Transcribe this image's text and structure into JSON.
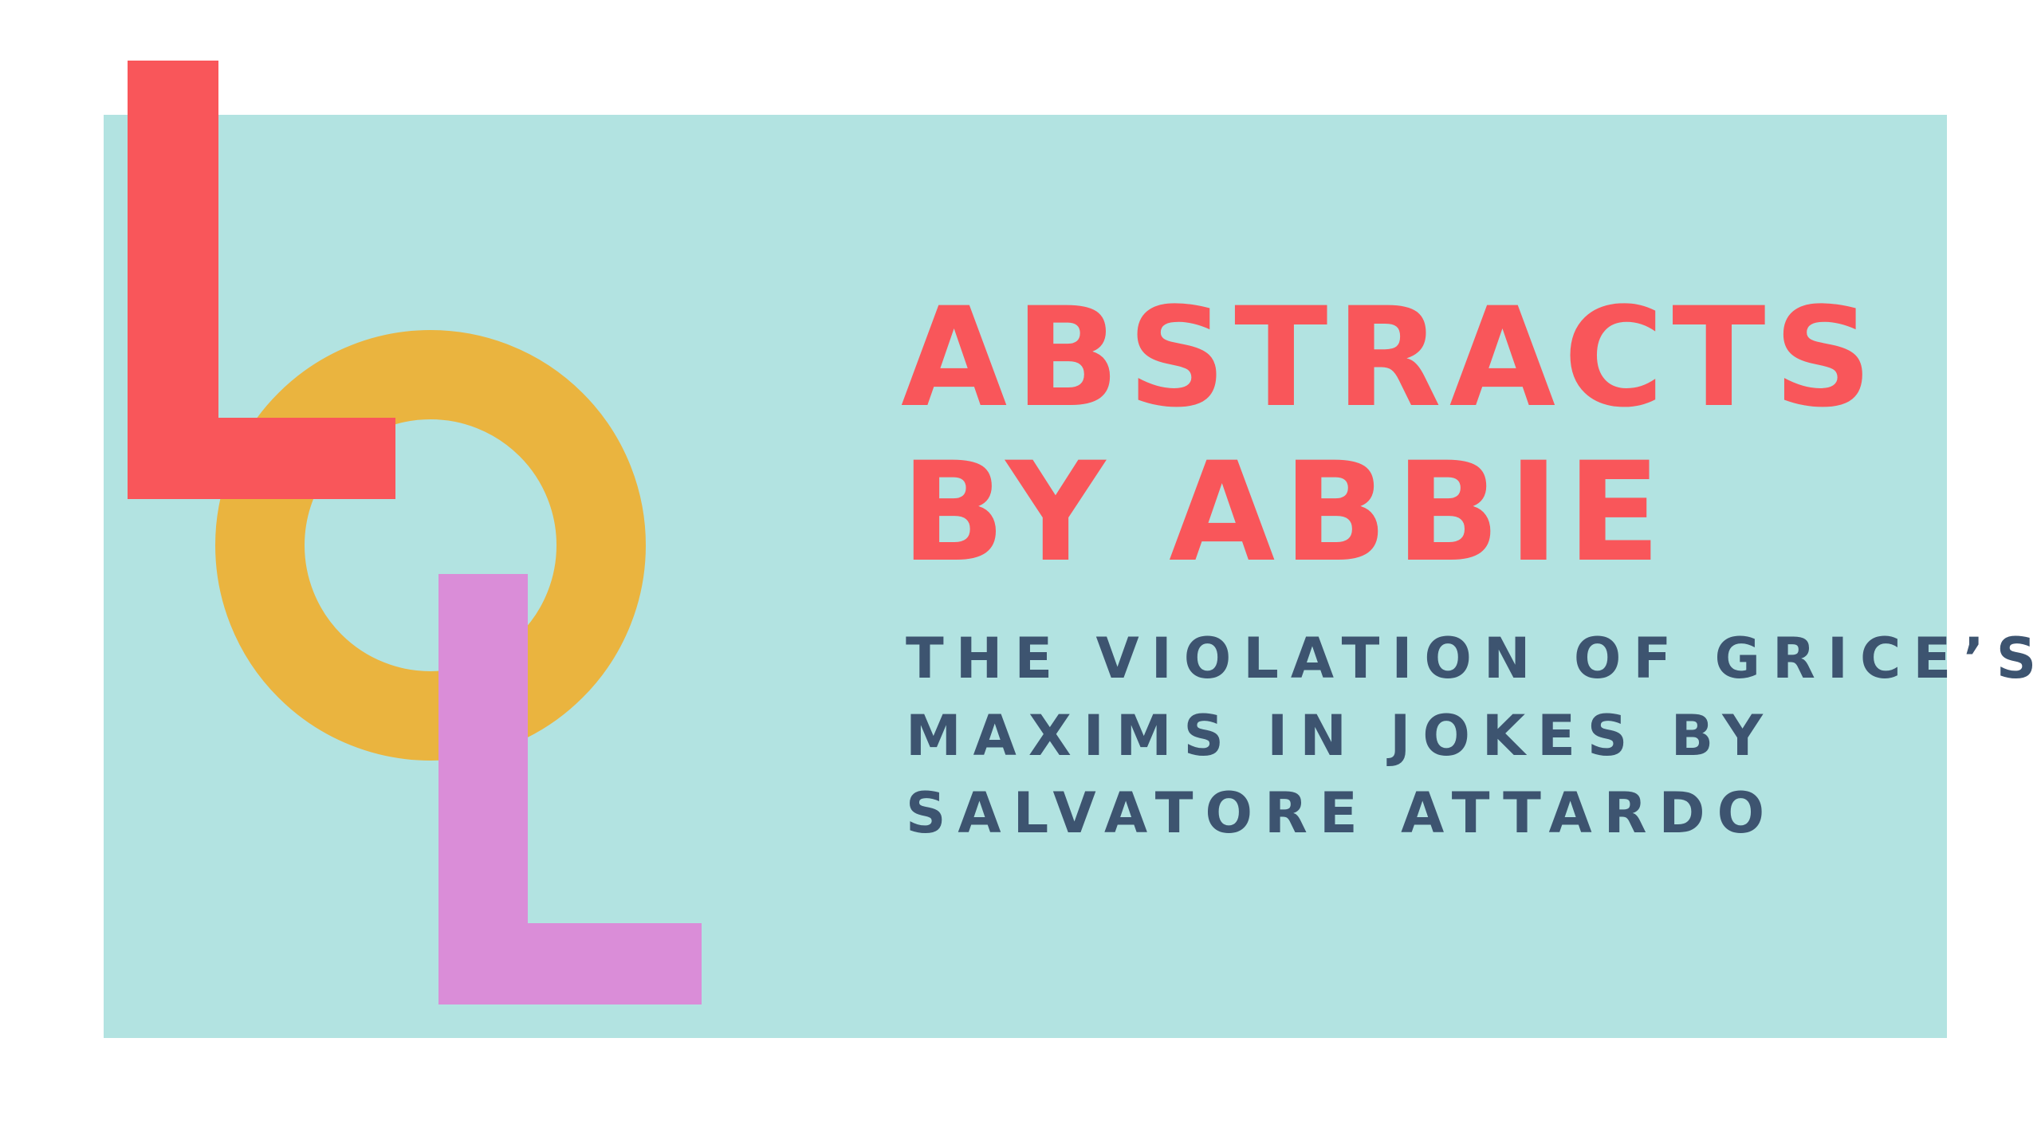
{
  "colors": {
    "background": "#ffffff",
    "panel": "#b2e3e1",
    "title": "#f9565a",
    "subtitle": "#3d5470",
    "logo_l_top": "#f9565a",
    "logo_o": "#eab43f",
    "logo_l_bottom": "#da8dd8"
  },
  "logo": {
    "letters": "LOL"
  },
  "title": {
    "line1": "ABSTRACTS",
    "line2": "BY ABBIE"
  },
  "subtitle": {
    "line1": "THE VIOLATION OF GRICE’S",
    "line2": "MAXIMS IN JOKES BY",
    "line3": "SALVATORE ATTARDO"
  }
}
